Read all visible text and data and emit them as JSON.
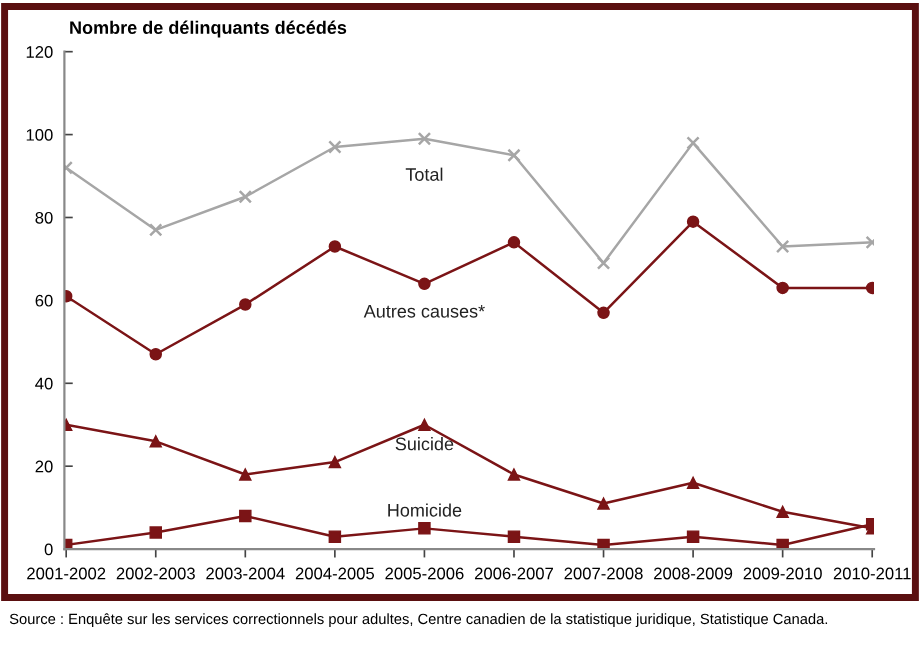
{
  "chart_data": {
    "type": "line",
    "ylabel": "Nombre de délinquants décédés",
    "categories": [
      "2001-2002",
      "2002-2003",
      "2003-2004",
      "2004-2005",
      "2005-2006",
      "2006-2007",
      "2007-2008",
      "2008-2009",
      "2009-2010",
      "2010-2011"
    ],
    "series": [
      {
        "name": "Total",
        "color": "#a6a6a6",
        "marker": "cross",
        "values": [
          92,
          77,
          85,
          97,
          99,
          95,
          69,
          98,
          73,
          74
        ]
      },
      {
        "name": "Autres causes*",
        "color": "#7b1416",
        "marker": "circle",
        "values": [
          61,
          47,
          59,
          73,
          64,
          74,
          57,
          79,
          63,
          63
        ]
      },
      {
        "name": "Suicide",
        "color": "#7b1416",
        "marker": "triangle",
        "values": [
          30,
          26,
          18,
          21,
          30,
          18,
          11,
          16,
          9,
          5
        ]
      },
      {
        "name": "Homicide",
        "color": "#7b1416",
        "marker": "square",
        "values": [
          1,
          4,
          8,
          3,
          5,
          3,
          1,
          3,
          1,
          6
        ]
      }
    ],
    "ylim": [
      0,
      120
    ],
    "yticks": [
      0,
      20,
      40,
      60,
      80,
      100,
      120
    ],
    "grid": false,
    "legend": false,
    "line_style": "solid",
    "annotations": [
      "Source : Enquête sur les services correctionnels pour adultes, Centre canadien de la statistique juridique, Statistique Canada."
    ]
  }
}
